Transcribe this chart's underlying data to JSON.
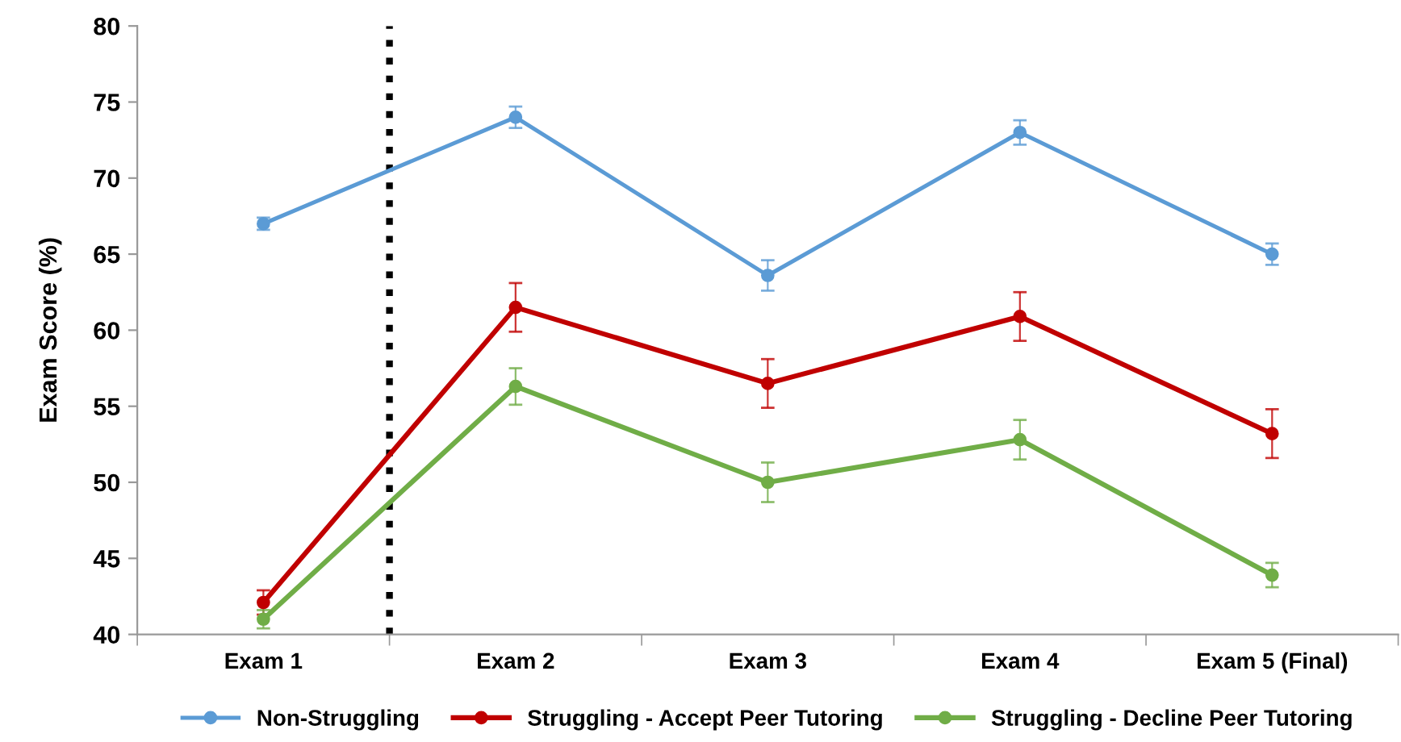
{
  "chart_data": {
    "type": "line",
    "ylabel": "Exam Score (%)",
    "categories": [
      "Exam 1",
      "Exam 2",
      "Exam 3",
      "Exam 4",
      "Exam 5 (Final)"
    ],
    "series": [
      {
        "name": "Non-Struggling",
        "color": "#5b9bd5",
        "values": [
          67,
          74,
          63.6,
          73,
          65
        ],
        "errors": [
          0.4,
          0.7,
          1.0,
          0.8,
          0.7
        ]
      },
      {
        "name": "Struggling - Accept Peer Tutoring",
        "color": "#c00000",
        "values": [
          42.1,
          61.5,
          56.5,
          60.9,
          53.2
        ],
        "errors": [
          0.8,
          1.6,
          1.6,
          1.6,
          1.6
        ]
      },
      {
        "name": "Struggling - Decline Peer Tutoring",
        "color": "#70ad47",
        "values": [
          41,
          56.3,
          50,
          52.8,
          43.9
        ],
        "errors": [
          0.6,
          1.2,
          1.3,
          1.3,
          0.8
        ]
      }
    ],
    "ylim": [
      40,
      80
    ],
    "yticks": [
      40,
      45,
      50,
      55,
      60,
      65,
      70,
      75,
      80
    ],
    "marker": "circle",
    "line_style": "solid",
    "legend": "bottom",
    "grid": false
  }
}
